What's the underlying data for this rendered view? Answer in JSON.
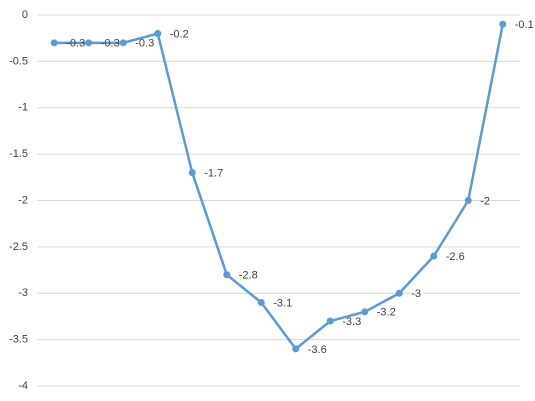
{
  "chart_data": {
    "type": "line",
    "categories": [
      null,
      null,
      null,
      null,
      null,
      null,
      null,
      null,
      null,
      null,
      null,
      null,
      null,
      null
    ],
    "series": [
      {
        "color": "#5b9bd5",
        "values": [
          -0.3,
          -0.3,
          -0.3,
          -0.2,
          -1.7,
          -2.8,
          -3.1,
          -3.6,
          -3.3,
          -3.2,
          -3,
          -2.6,
          -2,
          -0.1
        ]
      }
    ],
    "ylim": [
      -4,
      0
    ],
    "yticks": [
      0,
      -0.5,
      -1,
      -1.5,
      -2,
      -2.5,
      -3,
      -3.5,
      -4
    ],
    "grid": true,
    "data_labels": true
  }
}
